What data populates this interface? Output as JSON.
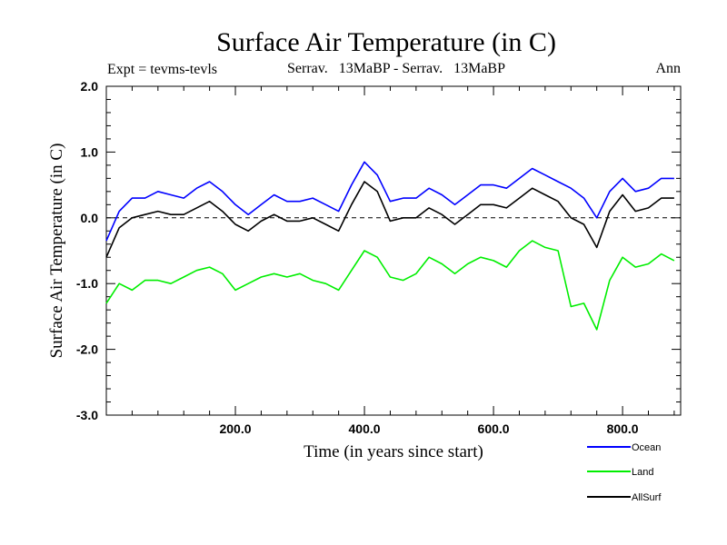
{
  "chart_data": {
    "type": "line",
    "title": "Surface Air Temperature (in C)",
    "subtitle_left": "Expt = tevms-tevls",
    "subtitle_center": "Serrav.   13MaBP - Serrav.   13MaBP",
    "subtitle_right": "Ann",
    "xlabel": "Time (in years since start)",
    "ylabel": "Surface Air Temperature (in C)",
    "xlim": [
      0,
      890
    ],
    "ylim": [
      -3.0,
      2.0
    ],
    "x_ticks": [
      200,
      400,
      600,
      800
    ],
    "x_tick_labels": [
      "200.0",
      "400.0",
      "600.0",
      "800.0"
    ],
    "y_ticks": [
      -3.0,
      -2.0,
      -1.0,
      0.0,
      1.0,
      2.0
    ],
    "y_tick_labels": [
      "-3.0",
      "-2.0",
      "-1.0",
      "0.0",
      "1.0",
      "2.0"
    ],
    "reference_line": 0.0,
    "legend_position": "bottom-right",
    "series": [
      {
        "name": "Ocean",
        "color": "#0000ff",
        "x": [
          0,
          20,
          40,
          60,
          80,
          100,
          120,
          140,
          160,
          180,
          200,
          220,
          240,
          260,
          280,
          300,
          320,
          340,
          360,
          380,
          400,
          420,
          440,
          460,
          480,
          500,
          520,
          540,
          560,
          580,
          600,
          620,
          640,
          660,
          680,
          700,
          720,
          740,
          760,
          780,
          800,
          820,
          840,
          860,
          880
        ],
        "values": [
          -0.35,
          0.1,
          0.3,
          0.3,
          0.4,
          0.35,
          0.3,
          0.45,
          0.55,
          0.4,
          0.2,
          0.05,
          0.2,
          0.35,
          0.25,
          0.25,
          0.3,
          0.2,
          0.1,
          0.5,
          0.85,
          0.65,
          0.25,
          0.3,
          0.3,
          0.45,
          0.35,
          0.2,
          0.35,
          0.5,
          0.5,
          0.45,
          0.6,
          0.75,
          0.65,
          0.55,
          0.45,
          0.3,
          0.0,
          0.4,
          0.6,
          0.4,
          0.45,
          0.6,
          0.6
        ]
      },
      {
        "name": "Land",
        "color": "#00ee00",
        "x": [
          0,
          20,
          40,
          60,
          80,
          100,
          120,
          140,
          160,
          180,
          200,
          220,
          240,
          260,
          280,
          300,
          320,
          340,
          360,
          380,
          400,
          420,
          440,
          460,
          480,
          500,
          520,
          540,
          560,
          580,
          600,
          620,
          640,
          660,
          680,
          700,
          720,
          740,
          760,
          780,
          800,
          820,
          840,
          860,
          880
        ],
        "values": [
          -1.3,
          -1.0,
          -1.1,
          -0.95,
          -0.95,
          -1.0,
          -0.9,
          -0.8,
          -0.75,
          -0.85,
          -1.1,
          -1.0,
          -0.9,
          -0.85,
          -0.9,
          -0.85,
          -0.95,
          -1.0,
          -1.1,
          -0.8,
          -0.5,
          -0.6,
          -0.9,
          -0.95,
          -0.85,
          -0.6,
          -0.7,
          -0.85,
          -0.7,
          -0.6,
          -0.65,
          -0.75,
          -0.5,
          -0.35,
          -0.45,
          -0.5,
          -1.35,
          -1.3,
          -1.7,
          -0.95,
          -0.6,
          -0.75,
          -0.7,
          -0.55,
          -0.65
        ]
      },
      {
        "name": "AllSurf",
        "color": "#000000",
        "x": [
          0,
          20,
          40,
          60,
          80,
          100,
          120,
          140,
          160,
          180,
          200,
          220,
          240,
          260,
          280,
          300,
          320,
          340,
          360,
          380,
          400,
          420,
          440,
          460,
          480,
          500,
          520,
          540,
          560,
          580,
          600,
          620,
          640,
          660,
          680,
          700,
          720,
          740,
          760,
          780,
          800,
          820,
          840,
          860,
          880
        ],
        "values": [
          -0.6,
          -0.15,
          0.0,
          0.05,
          0.1,
          0.05,
          0.05,
          0.15,
          0.25,
          0.1,
          -0.1,
          -0.2,
          -0.05,
          0.05,
          -0.05,
          -0.05,
          0.0,
          -0.1,
          -0.2,
          0.2,
          0.55,
          0.4,
          -0.05,
          0.0,
          0.0,
          0.15,
          0.05,
          -0.1,
          0.05,
          0.2,
          0.2,
          0.15,
          0.3,
          0.45,
          0.35,
          0.25,
          0.0,
          -0.1,
          -0.45,
          0.1,
          0.35,
          0.1,
          0.15,
          0.3,
          0.3
        ]
      }
    ]
  }
}
